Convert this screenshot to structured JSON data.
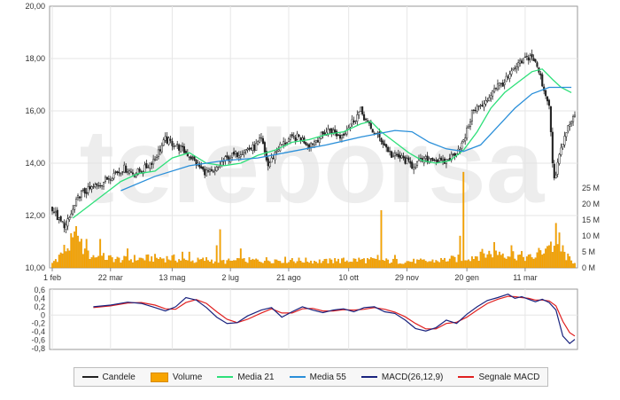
{
  "chart_data": [
    {
      "type": "candlestick",
      "panel": "price",
      "watermark": "teleborsa",
      "x_ticks": [
        "1 feb",
        "22 mar",
        "13 mag",
        "2 lug",
        "21 ago",
        "10 ott",
        "29 nov",
        "20 gen",
        "11 mar"
      ],
      "y_ticks": [
        "10,00",
        "12,00",
        "14,00",
        "16,00",
        "18,00",
        "20,00"
      ],
      "ylim": [
        10,
        20
      ],
      "volume_ticks": [
        "0 M",
        "5 M",
        "10 M",
        "15 M",
        "20 M",
        "25 M"
      ],
      "volume_ylim": [
        0,
        25
      ],
      "grid": true,
      "colors": {
        "candles": "#222222",
        "volume": "#f7a400",
        "ma21": "#2ee07a",
        "ma55": "#2a8fd9"
      },
      "price_anchors": [
        [
          0,
          12.3
        ],
        [
          4,
          11.8
        ],
        [
          8,
          11.6
        ],
        [
          12,
          12.2
        ],
        [
          16,
          12.8
        ],
        [
          22,
          13.0
        ],
        [
          30,
          13.3
        ],
        [
          36,
          13.6
        ],
        [
          42,
          13.8
        ],
        [
          48,
          13.6
        ],
        [
          54,
          13.8
        ],
        [
          60,
          14.2
        ],
        [
          66,
          14.9
        ],
        [
          72,
          14.7
        ],
        [
          80,
          14.3
        ],
        [
          88,
          13.7
        ],
        [
          94,
          13.6
        ],
        [
          100,
          14.1
        ],
        [
          106,
          14.3
        ],
        [
          112,
          14.5
        ],
        [
          118,
          14.6
        ],
        [
          122,
          14.9
        ],
        [
          126,
          13.9
        ],
        [
          132,
          14.6
        ],
        [
          138,
          14.9
        ],
        [
          144,
          15.0
        ],
        [
          150,
          14.7
        ],
        [
          156,
          15.0
        ],
        [
          162,
          15.3
        ],
        [
          168,
          15.0
        ],
        [
          174,
          15.5
        ],
        [
          180,
          16.0
        ],
        [
          186,
          15.3
        ],
        [
          192,
          14.9
        ],
        [
          198,
          14.3
        ],
        [
          204,
          14.2
        ],
        [
          210,
          13.9
        ],
        [
          216,
          14.1
        ],
        [
          222,
          14.2
        ],
        [
          228,
          14.0
        ],
        [
          234,
          14.3
        ],
        [
          240,
          14.8
        ],
        [
          246,
          16.1
        ],
        [
          252,
          16.2
        ],
        [
          258,
          16.9
        ],
        [
          264,
          17.1
        ],
        [
          270,
          17.6
        ],
        [
          276,
          18.0
        ],
        [
          280,
          18.1
        ],
        [
          284,
          17.5
        ],
        [
          288,
          16.6
        ],
        [
          290,
          16.3
        ],
        [
          292,
          14.0
        ],
        [
          293,
          13.3
        ],
        [
          296,
          14.3
        ],
        [
          300,
          15.2
        ],
        [
          303,
          15.7
        ]
      ],
      "ma21": [
        [
          12,
          11.9
        ],
        [
          20,
          12.3
        ],
        [
          30,
          12.8
        ],
        [
          40,
          13.3
        ],
        [
          50,
          13.6
        ],
        [
          60,
          13.7
        ],
        [
          70,
          14.2
        ],
        [
          80,
          14.4
        ],
        [
          90,
          14.0
        ],
        [
          100,
          13.9
        ],
        [
          110,
          14.0
        ],
        [
          120,
          14.3
        ],
        [
          130,
          14.5
        ],
        [
          140,
          14.8
        ],
        [
          150,
          14.9
        ],
        [
          160,
          15.1
        ],
        [
          170,
          15.2
        ],
        [
          180,
          15.5
        ],
        [
          186,
          15.6
        ],
        [
          192,
          15.2
        ],
        [
          200,
          14.8
        ],
        [
          208,
          14.4
        ],
        [
          216,
          14.1
        ],
        [
          224,
          14.0
        ],
        [
          232,
          14.1
        ],
        [
          240,
          14.5
        ],
        [
          248,
          15.2
        ],
        [
          256,
          16.1
        ],
        [
          264,
          16.7
        ],
        [
          272,
          17.1
        ],
        [
          280,
          17.5
        ],
        [
          286,
          17.6
        ],
        [
          292,
          17.2
        ],
        [
          297,
          16.9
        ],
        [
          303,
          16.7
        ]
      ],
      "ma55": [
        [
          40,
          12.95
        ],
        [
          60,
          13.5
        ],
        [
          80,
          13.9
        ],
        [
          100,
          14.1
        ],
        [
          120,
          14.2
        ],
        [
          140,
          14.45
        ],
        [
          160,
          14.7
        ],
        [
          180,
          15.0
        ],
        [
          200,
          15.25
        ],
        [
          210,
          15.2
        ],
        [
          220,
          14.8
        ],
        [
          230,
          14.55
        ],
        [
          240,
          14.45
        ],
        [
          250,
          14.7
        ],
        [
          260,
          15.4
        ],
        [
          270,
          16.1
        ],
        [
          280,
          16.65
        ],
        [
          290,
          16.9
        ],
        [
          303,
          16.9
        ]
      ],
      "volume_anchors": [
        [
          0,
          1.5
        ],
        [
          8,
          6
        ],
        [
          14,
          9
        ],
        [
          20,
          4
        ],
        [
          40,
          2.5
        ],
        [
          58,
          3
        ],
        [
          70,
          3
        ],
        [
          80,
          2
        ],
        [
          90,
          2.5
        ],
        [
          100,
          2
        ],
        [
          130,
          2.5
        ],
        [
          160,
          2
        ],
        [
          180,
          2.5
        ],
        [
          200,
          2
        ],
        [
          220,
          2
        ],
        [
          240,
          3
        ],
        [
          260,
          5
        ],
        [
          280,
          3
        ],
        [
          290,
          7
        ],
        [
          296,
          6
        ],
        [
          303,
          2
        ]
      ],
      "volume_spikes": [
        [
          14,
          13
        ],
        [
          15,
          10
        ],
        [
          20,
          9
        ],
        [
          28,
          9
        ],
        [
          44,
          6
        ],
        [
          48,
          4
        ],
        [
          76,
          5
        ],
        [
          80,
          5
        ],
        [
          96,
          7
        ],
        [
          98,
          12
        ],
        [
          110,
          6
        ],
        [
          140,
          3
        ],
        [
          165,
          3
        ],
        [
          190,
          4
        ],
        [
          192,
          18
        ],
        [
          200,
          4
        ],
        [
          238,
          10
        ],
        [
          240,
          30
        ],
        [
          250,
          5
        ],
        [
          258,
          8
        ],
        [
          268,
          7
        ],
        [
          290,
          7
        ],
        [
          294,
          14
        ],
        [
          296,
          11
        ],
        [
          298,
          7
        ]
      ]
    },
    {
      "type": "line",
      "panel": "macd",
      "y_ticks": [
        "0,6",
        "0,4",
        "0,2",
        "0",
        "-0,2",
        "-0,4",
        "-0,6",
        "-0,8"
      ],
      "ylim": [
        -0.8,
        0.6
      ],
      "colors": {
        "macd": "#1a237e",
        "signal": "#e02020"
      },
      "macd": [
        [
          24,
          0.2
        ],
        [
          34,
          0.24
        ],
        [
          44,
          0.31
        ],
        [
          52,
          0.28
        ],
        [
          60,
          0.18
        ],
        [
          66,
          0.1
        ],
        [
          72,
          0.2
        ],
        [
          78,
          0.42
        ],
        [
          84,
          0.36
        ],
        [
          90,
          0.18
        ],
        [
          96,
          -0.05
        ],
        [
          102,
          -0.2
        ],
        [
          108,
          -0.18
        ],
        [
          114,
          -0.02
        ],
        [
          122,
          0.12
        ],
        [
          128,
          0.18
        ],
        [
          134,
          -0.05
        ],
        [
          140,
          0.08
        ],
        [
          146,
          0.2
        ],
        [
          152,
          0.12
        ],
        [
          158,
          0.06
        ],
        [
          164,
          0.12
        ],
        [
          170,
          0.15
        ],
        [
          176,
          0.08
        ],
        [
          182,
          0.18
        ],
        [
          188,
          0.2
        ],
        [
          194,
          0.08
        ],
        [
          200,
          0.04
        ],
        [
          206,
          -0.12
        ],
        [
          212,
          -0.32
        ],
        [
          218,
          -0.38
        ],
        [
          224,
          -0.3
        ],
        [
          230,
          -0.12
        ],
        [
          236,
          -0.2
        ],
        [
          242,
          0.02
        ],
        [
          248,
          0.2
        ],
        [
          254,
          0.35
        ],
        [
          260,
          0.42
        ],
        [
          266,
          0.5
        ],
        [
          270,
          0.4
        ],
        [
          274,
          0.44
        ],
        [
          278,
          0.38
        ],
        [
          282,
          0.32
        ],
        [
          286,
          0.38
        ],
        [
          290,
          0.3
        ],
        [
          294,
          0.12
        ],
        [
          298,
          -0.5
        ],
        [
          302,
          -0.68
        ],
        [
          305,
          -0.58
        ]
      ],
      "signal": [
        [
          24,
          0.18
        ],
        [
          34,
          0.22
        ],
        [
          44,
          0.29
        ],
        [
          52,
          0.3
        ],
        [
          60,
          0.24
        ],
        [
          66,
          0.15
        ],
        [
          72,
          0.14
        ],
        [
          78,
          0.3
        ],
        [
          84,
          0.37
        ],
        [
          90,
          0.28
        ],
        [
          96,
          0.08
        ],
        [
          102,
          -0.1
        ],
        [
          108,
          -0.18
        ],
        [
          114,
          -0.1
        ],
        [
          122,
          0.05
        ],
        [
          128,
          0.15
        ],
        [
          134,
          0.05
        ],
        [
          140,
          0.05
        ],
        [
          146,
          0.15
        ],
        [
          152,
          0.16
        ],
        [
          158,
          0.1
        ],
        [
          164,
          0.1
        ],
        [
          170,
          0.13
        ],
        [
          176,
          0.12
        ],
        [
          182,
          0.14
        ],
        [
          188,
          0.18
        ],
        [
          194,
          0.14
        ],
        [
          200,
          0.07
        ],
        [
          206,
          -0.04
        ],
        [
          212,
          -0.2
        ],
        [
          218,
          -0.33
        ],
        [
          224,
          -0.33
        ],
        [
          230,
          -0.2
        ],
        [
          236,
          -0.17
        ],
        [
          242,
          -0.05
        ],
        [
          248,
          0.12
        ],
        [
          254,
          0.28
        ],
        [
          260,
          0.38
        ],
        [
          266,
          0.45
        ],
        [
          270,
          0.44
        ],
        [
          274,
          0.42
        ],
        [
          278,
          0.4
        ],
        [
          282,
          0.36
        ],
        [
          286,
          0.36
        ],
        [
          290,
          0.34
        ],
        [
          294,
          0.22
        ],
        [
          298,
          -0.15
        ],
        [
          302,
          -0.42
        ],
        [
          305,
          -0.5
        ]
      ]
    }
  ],
  "legend": [
    {
      "label": "Candele",
      "kind": "line",
      "color": "#222222"
    },
    {
      "label": "Volume",
      "kind": "box",
      "color": "#f7a400"
    },
    {
      "label": "Media 21",
      "kind": "line",
      "color": "#2ee07a"
    },
    {
      "label": "Media 55",
      "kind": "line",
      "color": "#2a8fd9"
    },
    {
      "label": "MACD(26,12,9)",
      "kind": "line",
      "color": "#1a237e"
    },
    {
      "label": "Segnale MACD",
      "kind": "line",
      "color": "#e02020"
    }
  ]
}
